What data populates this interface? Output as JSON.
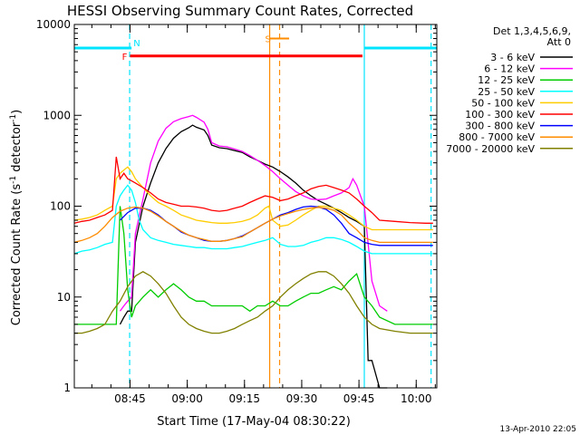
{
  "chart_data": {
    "type": "line",
    "title": "HESSI Observing Summary Count Rates, Corrected",
    "xlabel": "Start Time (17-May-04 08:30:22)",
    "ylabel_main": "Corrected Count Rate (s",
    "ylabel_exp1": "-1",
    "ylabel_mid": " detector",
    "ylabel_exp2": "-1",
    "ylabel_end": ")",
    "y_scale": "log",
    "ylim": [
      1,
      10000
    ],
    "xlim_minutes": [
      0,
      95
    ],
    "x_ticks": [
      {
        "minute": 14.6,
        "label": "08:45"
      },
      {
        "minute": 29.6,
        "label": "09:00"
      },
      {
        "minute": 44.6,
        "label": "09:15"
      },
      {
        "minute": 59.6,
        "label": "09:30"
      },
      {
        "minute": 74.6,
        "label": "09:45"
      },
      {
        "minute": 89.6,
        "label": "10:00"
      }
    ],
    "y_ticks": [
      {
        "value": 1,
        "label": "1"
      },
      {
        "value": 10,
        "label": "10"
      },
      {
        "value": 100,
        "label": "100"
      },
      {
        "value": 1000,
        "label": "1000"
      },
      {
        "value": 10000,
        "label": "10000"
      }
    ],
    "legend_title": [
      "Det 1,3,4,5,6,9,",
      "Att 0"
    ],
    "legend_position": "right",
    "footer_date": "13-Apr-2010 22:05",
    "flags": [
      {
        "label": "N",
        "color": "#00e5ff"
      },
      {
        "label": "F",
        "color": "#ff0000"
      },
      {
        "label": "S",
        "color": "#ff8c00"
      }
    ],
    "markers": {
      "night_bar": [
        [
          0,
          15,
          5500
        ],
        [
          76,
          95,
          5500
        ]
      ],
      "flare_bar": [
        14.6,
        75.5,
        4500
      ],
      "saa_bar": [
        51.2,
        56.3,
        7000
      ]
    },
    "vlines": [
      {
        "minute": 14.5,
        "color": "#00e5ff",
        "style": "dashed"
      },
      {
        "minute": 76.0,
        "color": "#00e5ff",
        "style": "solid"
      },
      {
        "minute": 93.5,
        "color": "#00e5ff",
        "style": "dashed"
      },
      {
        "minute": 51.2,
        "color": "#ff8c00",
        "style": "solid"
      },
      {
        "minute": 53.8,
        "color": "#ff8c00",
        "style": "dashed"
      }
    ],
    "series": [
      {
        "name": "3 - 6 keV",
        "color": "#000000",
        "x": [
          12,
          13,
          14,
          15,
          16,
          18,
          20,
          22,
          24,
          26,
          28,
          30,
          31,
          32,
          34,
          35,
          36,
          38,
          40,
          44,
          46,
          48,
          50,
          52,
          54,
          56,
          58,
          60,
          62,
          64,
          66,
          68,
          70,
          72,
          74,
          76,
          77,
          78,
          80,
          82
        ],
        "y": [
          5,
          6,
          7,
          7,
          40,
          100,
          180,
          300,
          430,
          560,
          660,
          730,
          780,
          740,
          690,
          600,
          470,
          440,
          430,
          390,
          350,
          320,
          290,
          270,
          240,
          210,
          180,
          150,
          130,
          115,
          105,
          95,
          85,
          75,
          68,
          60,
          2,
          2,
          1,
          1
        ]
      },
      {
        "name": "6 - 12 keV",
        "color": "#ff00ff",
        "x": [
          12,
          13,
          14,
          15,
          16,
          18,
          20,
          22,
          24,
          26,
          28,
          30,
          31,
          32,
          34,
          35,
          36,
          38,
          40,
          44,
          46,
          48,
          50,
          52,
          54,
          56,
          58,
          60,
          62,
          64,
          66,
          68,
          70,
          72,
          73,
          74,
          75,
          76,
          78,
          80,
          82
        ],
        "y": [
          7,
          8,
          9,
          10,
          50,
          120,
          300,
          520,
          720,
          850,
          920,
          970,
          1000,
          950,
          840,
          700,
          500,
          460,
          450,
          400,
          360,
          320,
          280,
          240,
          200,
          170,
          145,
          130,
          120,
          118,
          120,
          130,
          140,
          160,
          200,
          170,
          130,
          100,
          15,
          8,
          7
        ]
      },
      {
        "name": "12 - 25 keV",
        "color": "#00cc00",
        "x": [
          0,
          4,
          8,
          11,
          12,
          13,
          14,
          15,
          16,
          18,
          20,
          22,
          24,
          26,
          28,
          30,
          32,
          34,
          36,
          38,
          40,
          42,
          44,
          46,
          48,
          50,
          52,
          54,
          56,
          58,
          60,
          62,
          64,
          66,
          68,
          70,
          72,
          74,
          76,
          78,
          80,
          84,
          88,
          92,
          94
        ],
        "y": [
          5,
          5,
          5,
          5,
          100,
          50,
          12,
          6,
          8,
          10,
          12,
          10,
          12,
          14,
          12,
          10,
          9,
          9,
          8,
          8,
          8,
          8,
          8,
          7,
          8,
          8,
          9,
          8,
          8,
          9,
          10,
          11,
          11,
          12,
          13,
          12,
          15,
          18,
          10,
          8,
          6,
          5,
          5,
          5,
          5
        ]
      },
      {
        "name": "25 - 50 keV",
        "color": "#00ffff",
        "x": [
          0,
          2,
          4,
          6,
          8,
          10,
          11,
          12,
          13,
          14,
          15,
          16,
          17,
          18,
          20,
          22,
          24,
          26,
          28,
          30,
          32,
          34,
          36,
          38,
          40,
          42,
          44,
          46,
          48,
          50,
          52,
          54,
          56,
          58,
          60,
          62,
          64,
          66,
          68,
          70,
          72,
          74,
          76,
          78,
          80,
          84,
          88,
          92,
          94
        ],
        "y": [
          30,
          32,
          33,
          35,
          38,
          40,
          100,
          130,
          150,
          170,
          150,
          110,
          70,
          55,
          45,
          42,
          40,
          38,
          37,
          36,
          35,
          35,
          34,
          34,
          34,
          35,
          36,
          38,
          40,
          42,
          45,
          38,
          36,
          36,
          37,
          40,
          42,
          45,
          45,
          43,
          40,
          36,
          32,
          30,
          30,
          30,
          30,
          30,
          30
        ]
      },
      {
        "name": "50 - 100 keV",
        "color": "#ffcc00",
        "x": [
          0,
          2,
          4,
          6,
          8,
          10,
          11,
          12,
          13,
          14,
          15,
          16,
          18,
          20,
          22,
          24,
          26,
          28,
          30,
          32,
          34,
          36,
          38,
          40,
          42,
          44,
          46,
          48,
          50,
          51,
          52,
          54,
          56,
          58,
          60,
          62,
          64,
          66,
          68,
          70,
          72,
          74,
          76,
          78,
          80,
          84,
          88,
          92,
          94
        ],
        "y": [
          70,
          72,
          75,
          80,
          90,
          100,
          200,
          230,
          250,
          270,
          240,
          200,
          160,
          130,
          110,
          100,
          90,
          80,
          75,
          70,
          68,
          66,
          65,
          65,
          66,
          68,
          72,
          80,
          95,
          100,
          70,
          60,
          62,
          70,
          80,
          90,
          100,
          100,
          95,
          90,
          80,
          70,
          60,
          55,
          55,
          55,
          55,
          55,
          55
        ]
      },
      {
        "name": "100 - 300 keV",
        "color": "#ff0000",
        "x": [
          0,
          2,
          4,
          6,
          8,
          10,
          11,
          12,
          13,
          14,
          15,
          16,
          18,
          20,
          22,
          24,
          26,
          28,
          30,
          32,
          34,
          36,
          38,
          40,
          42,
          44,
          46,
          48,
          50,
          52,
          54,
          56,
          58,
          60,
          62,
          64,
          66,
          68,
          70,
          72,
          74,
          76,
          78,
          80,
          84,
          88,
          92,
          94
        ],
        "y": [
          65,
          68,
          70,
          75,
          80,
          90,
          350,
          200,
          230,
          200,
          190,
          180,
          160,
          140,
          120,
          110,
          105,
          100,
          100,
          98,
          95,
          90,
          88,
          90,
          95,
          100,
          110,
          120,
          130,
          125,
          115,
          120,
          130,
          140,
          155,
          165,
          170,
          160,
          150,
          140,
          120,
          100,
          85,
          70,
          68,
          66,
          65,
          65
        ]
      },
      {
        "name": "300 - 800 keV",
        "color": "#0000ff",
        "x": [
          12,
          14,
          16,
          18,
          20,
          22,
          24,
          26,
          28,
          30,
          32,
          34,
          36,
          38,
          40,
          42,
          44,
          46,
          48,
          50,
          52,
          54,
          56,
          58,
          60,
          62,
          64,
          66,
          68,
          70,
          72,
          74,
          76,
          78,
          80,
          84,
          88,
          92,
          94
        ],
        "y": [
          70,
          85,
          95,
          95,
          90,
          80,
          68,
          60,
          52,
          48,
          45,
          42,
          41,
          41,
          42,
          44,
          47,
          52,
          58,
          65,
          72,
          80,
          85,
          92,
          98,
          100,
          98,
          92,
          80,
          65,
          50,
          45,
          40,
          38,
          37,
          37,
          37,
          37,
          37
        ]
      },
      {
        "name": "800 - 7000 keV",
        "color": "#ff8c00",
        "x": [
          0,
          2,
          4,
          6,
          8,
          10,
          12,
          14,
          16,
          18,
          20,
          22,
          24,
          26,
          28,
          30,
          32,
          34,
          36,
          38,
          40,
          42,
          44,
          46,
          48,
          50,
          52,
          54,
          56,
          58,
          60,
          62,
          64,
          66,
          68,
          70,
          72,
          74,
          76,
          78,
          80,
          84,
          88,
          92,
          94
        ],
        "y": [
          40,
          42,
          45,
          50,
          60,
          75,
          88,
          95,
          98,
          95,
          88,
          78,
          68,
          60,
          53,
          48,
          45,
          43,
          41,
          41,
          42,
          44,
          46,
          52,
          58,
          65,
          72,
          78,
          83,
          88,
          92,
          95,
          97,
          95,
          90,
          80,
          65,
          55,
          45,
          42,
          40,
          40,
          40,
          40,
          40
        ]
      },
      {
        "name": "7000 - 20000 keV",
        "color": "#808000",
        "x": [
          0,
          2,
          4,
          6,
          8,
          10,
          12,
          14,
          16,
          18,
          20,
          22,
          24,
          26,
          28,
          30,
          32,
          34,
          36,
          38,
          40,
          42,
          44,
          46,
          48,
          50,
          52,
          54,
          56,
          58,
          60,
          62,
          64,
          66,
          68,
          70,
          72,
          74,
          76,
          78,
          80,
          84,
          88,
          92,
          94
        ],
        "y": [
          4,
          4,
          4.2,
          4.5,
          5,
          7,
          9,
          13,
          17,
          19,
          17,
          14,
          11,
          8,
          6,
          5,
          4.5,
          4.2,
          4,
          4,
          4.2,
          4.5,
          5,
          5.5,
          6,
          7,
          8,
          10,
          12,
          14,
          16,
          18,
          19,
          19,
          17,
          14,
          11,
          8,
          6,
          5,
          4.5,
          4.2,
          4,
          4,
          4
        ]
      }
    ]
  }
}
